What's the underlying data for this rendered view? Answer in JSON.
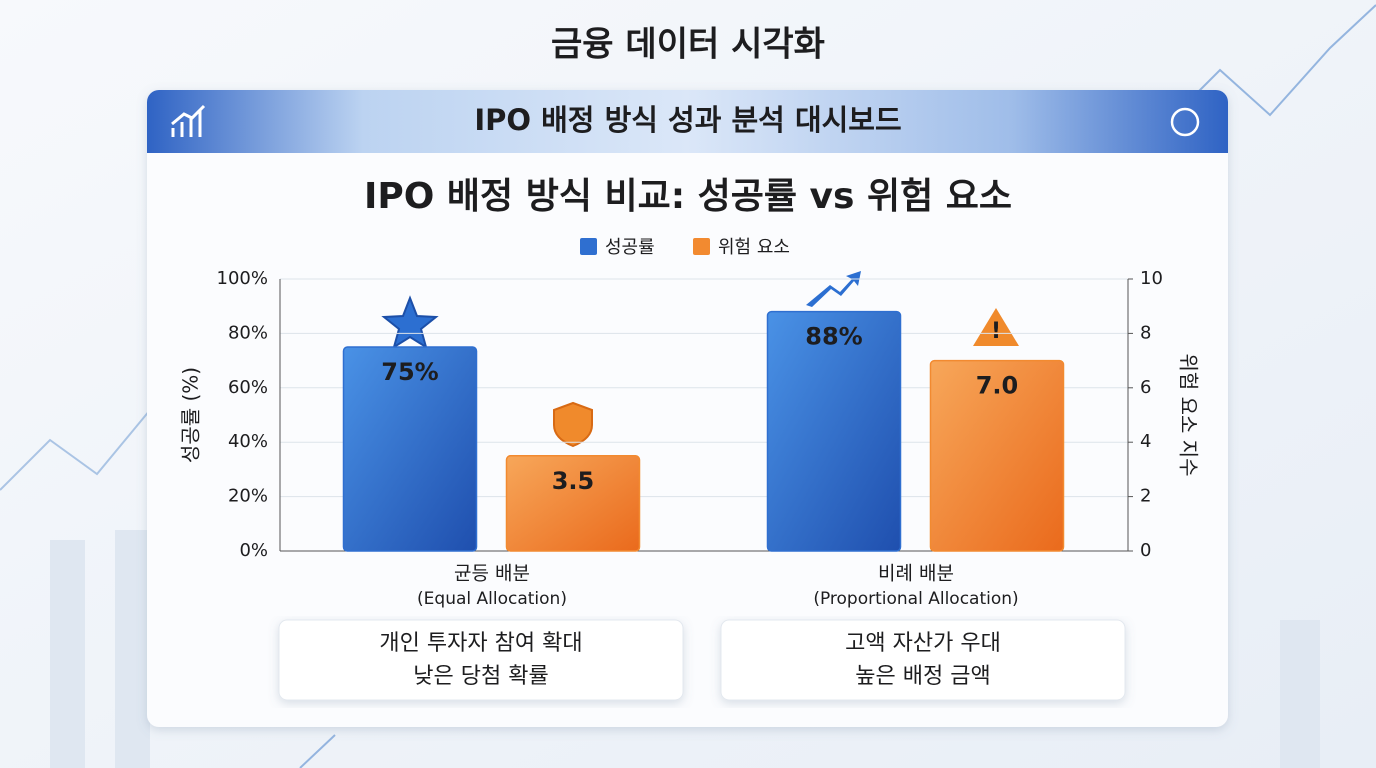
{
  "page_title": "금융 데이터 시각화",
  "header": {
    "title": "IPO 배정 방식 성과 분석 대시보드"
  },
  "chart_data": {
    "type": "bar",
    "title": "IPO 배정 방식 비교: 성공률 vs 위험 요소",
    "categories": [
      "균등 배분",
      "비례 배분"
    ],
    "category_subtitles": [
      "(Equal Allocation)",
      "(Proportional Allocation)"
    ],
    "series": [
      {
        "name": "성공률",
        "color": "#2f6fd0",
        "values": [
          75,
          88
        ],
        "value_labels": [
          "75%",
          "88%"
        ]
      },
      {
        "name": "위험 요소",
        "color": "#f28a30",
        "axis": "y2",
        "values": [
          3.5,
          7.0
        ],
        "value_labels": [
          "3.5",
          "7.0"
        ]
      }
    ],
    "ylabel": "성공률 (%)",
    "y2label": "위험 요소 지수",
    "ylim": [
      0,
      100
    ],
    "yticks": [
      {
        "value": 0,
        "label": "0%"
      },
      {
        "value": 20,
        "label": "20%"
      },
      {
        "value": 40,
        "label": "40%"
      },
      {
        "value": 60,
        "label": "60%"
      },
      {
        "value": 80,
        "label": "80%"
      },
      {
        "value": 100,
        "label": "100%"
      }
    ],
    "y2lim": [
      0,
      10
    ],
    "y2ticks": [
      0,
      2,
      4,
      6,
      8,
      10
    ],
    "grid": true,
    "legend": "top"
  },
  "notes": [
    [
      "개인 투자자 참여 확대",
      "낮은 당첨 확률"
    ],
    [
      "고액 자산가 우대",
      "높은 배정 금액"
    ]
  ]
}
